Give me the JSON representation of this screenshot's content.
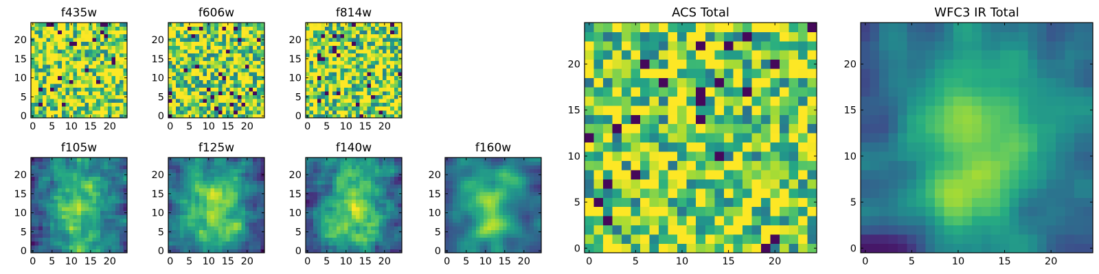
{
  "figure": {
    "background": "#ffffff",
    "colormap": "viridis"
  },
  "chart_data": [
    {
      "type": "heatmap",
      "title": "f435w",
      "grid": false,
      "xlim": [
        -0.5,
        24.5
      ],
      "ylim": [
        -0.5,
        24.5
      ],
      "xticks": [
        0,
        5,
        10,
        15,
        20
      ],
      "xtick_labels": [
        "0",
        "5",
        "10",
        "15",
        "20"
      ],
      "yticks": [
        0,
        5,
        10,
        15,
        20
      ],
      "ytick_labels": [
        "0",
        "5",
        "10",
        "15",
        "20"
      ],
      "rows": 25,
      "cols": 25,
      "texture": "noisy",
      "mean_level": 0.75,
      "seed": 11
    },
    {
      "type": "heatmap",
      "title": "f606w",
      "grid": false,
      "xlim": [
        -0.5,
        24.5
      ],
      "ylim": [
        -0.5,
        24.5
      ],
      "xticks": [
        0,
        5,
        10,
        15,
        20
      ],
      "xtick_labels": [
        "0",
        "5",
        "10",
        "15",
        "20"
      ],
      "yticks": [
        0,
        5,
        10,
        15,
        20
      ],
      "ytick_labels": [
        "0",
        "5",
        "10",
        "15",
        "20"
      ],
      "rows": 25,
      "cols": 25,
      "texture": "noisy",
      "mean_level": 0.72,
      "seed": 23
    },
    {
      "type": "heatmap",
      "title": "f814w",
      "grid": false,
      "xlim": [
        -0.5,
        24.5
      ],
      "ylim": [
        -0.5,
        24.5
      ],
      "xticks": [
        0,
        5,
        10,
        15,
        20
      ],
      "xtick_labels": [
        "0",
        "5",
        "10",
        "15",
        "20"
      ],
      "yticks": [
        0,
        5,
        10,
        15,
        20
      ],
      "ytick_labels": [
        "0",
        "5",
        "10",
        "15",
        "20"
      ],
      "rows": 25,
      "cols": 25,
      "texture": "noisy",
      "mean_level": 0.72,
      "seed": 37
    },
    {
      "type": "heatmap",
      "title": "f105w",
      "grid": false,
      "xlim": [
        -0.5,
        24.5
      ],
      "ylim": [
        -0.5,
        24.5
      ],
      "xticks": [
        0,
        5,
        10,
        15,
        20
      ],
      "xtick_labels": [
        "0",
        "5",
        "10",
        "15",
        "20"
      ],
      "yticks": [
        0,
        5,
        10,
        15,
        20
      ],
      "ytick_labels": [
        "0",
        "5",
        "10",
        "15",
        "20"
      ],
      "rows": 25,
      "cols": 25,
      "texture": "blob",
      "mean_level": 0.62,
      "seed": 41
    },
    {
      "type": "heatmap",
      "title": "f125w",
      "grid": false,
      "xlim": [
        -0.5,
        24.5
      ],
      "ylim": [
        -0.5,
        24.5
      ],
      "xticks": [
        0,
        5,
        10,
        15,
        20
      ],
      "xtick_labels": [
        "0",
        "5",
        "10",
        "15",
        "20"
      ],
      "yticks": [
        0,
        5,
        10,
        15,
        20
      ],
      "ytick_labels": [
        "0",
        "5",
        "10",
        "15",
        "20"
      ],
      "rows": 25,
      "cols": 25,
      "texture": "blob",
      "mean_level": 0.6,
      "seed": 53
    },
    {
      "type": "heatmap",
      "title": "f140w",
      "grid": false,
      "xlim": [
        -0.5,
        24.5
      ],
      "ylim": [
        -0.5,
        24.5
      ],
      "xticks": [
        0,
        5,
        10,
        15,
        20
      ],
      "xtick_labels": [
        "0",
        "5",
        "10",
        "15",
        "20"
      ],
      "yticks": [
        0,
        5,
        10,
        15,
        20
      ],
      "ytick_labels": [
        "0",
        "5",
        "10",
        "15",
        "20"
      ],
      "rows": 25,
      "cols": 25,
      "texture": "blob",
      "mean_level": 0.6,
      "seed": 67
    },
    {
      "type": "heatmap",
      "title": "f160w",
      "grid": false,
      "xlim": [
        -0.5,
        24.5
      ],
      "ylim": [
        -0.5,
        24.5
      ],
      "xticks": [
        0,
        5,
        10,
        15,
        20
      ],
      "xtick_labels": [
        "0",
        "5",
        "10",
        "15",
        "20"
      ],
      "yticks": [
        0,
        5,
        10,
        15,
        20
      ],
      "ytick_labels": [
        "0",
        "5",
        "10",
        "15",
        "20"
      ],
      "rows": 25,
      "cols": 25,
      "texture": "smooth",
      "mean_level": 0.55,
      "seed": 71
    },
    {
      "type": "heatmap",
      "title": "ACS Total",
      "grid": false,
      "xlim": [
        -0.5,
        24.5
      ],
      "ylim": [
        -0.5,
        24.5
      ],
      "xticks": [
        0,
        5,
        10,
        15,
        20
      ],
      "xtick_labels": [
        "0",
        "5",
        "10",
        "15",
        "20"
      ],
      "yticks": [
        0,
        5,
        10,
        15,
        20
      ],
      "ytick_labels": [
        "0",
        "5",
        "10",
        "15",
        "20"
      ],
      "rows": 25,
      "cols": 25,
      "texture": "noisy",
      "mean_level": 0.68,
      "seed": 89
    },
    {
      "type": "heatmap",
      "title": "WFC3 IR Total",
      "grid": false,
      "xlim": [
        -0.5,
        24.5
      ],
      "ylim": [
        -0.5,
        24.5
      ],
      "xticks": [
        0,
        5,
        10,
        15,
        20
      ],
      "xtick_labels": [
        "0",
        "5",
        "10",
        "15",
        "20"
      ],
      "yticks": [
        0,
        5,
        10,
        15,
        20
      ],
      "ytick_labels": [
        "0",
        "5",
        "10",
        "15",
        "20"
      ],
      "rows": 25,
      "cols": 25,
      "texture": "smooth",
      "mean_level": 0.55,
      "seed": 97
    }
  ]
}
